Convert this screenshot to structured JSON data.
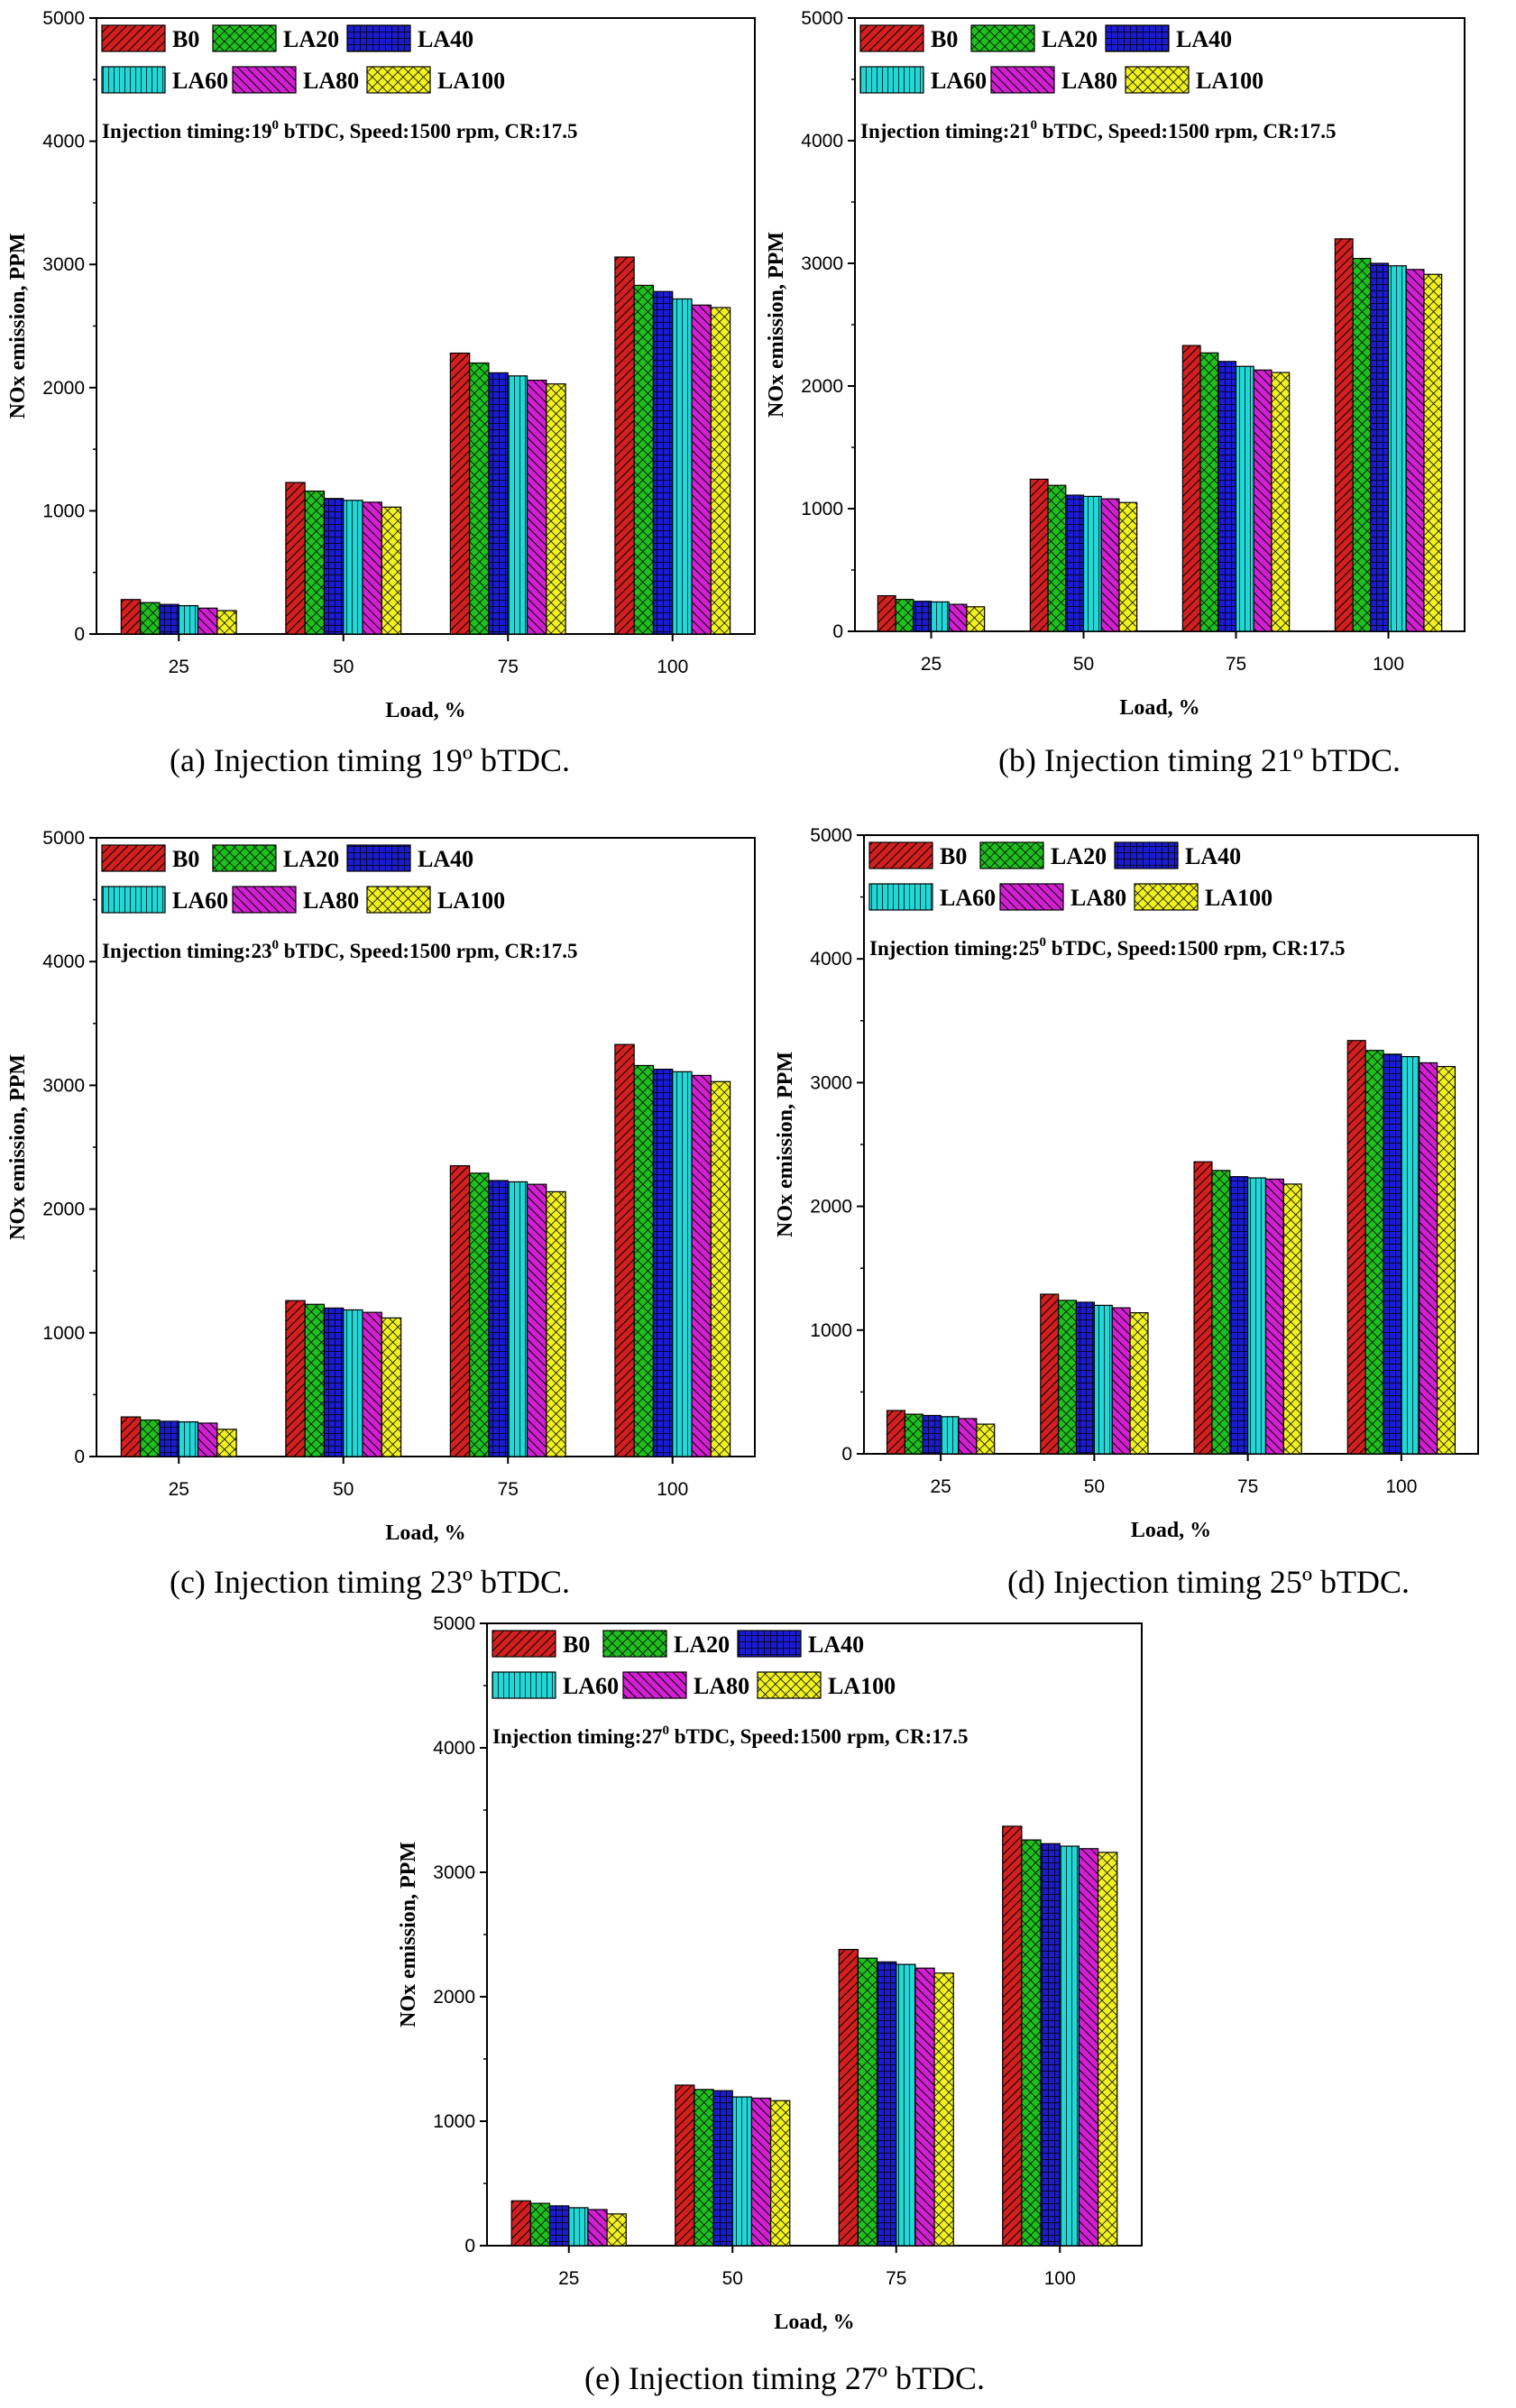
{
  "figure": {
    "captions": [
      "(a) Injection timing 19º bTDC.",
      "(b) Injection timing 21º bTDC.",
      "(c) Injection timing 23º bTDC.",
      "(d) Injection timing 25º bTDC.",
      "(e) Injection timing 27º bTDC."
    ]
  },
  "series_styles": [
    {
      "name": "B0",
      "color": "#d21f1f",
      "pattern": "diag-right"
    },
    {
      "name": "LA20",
      "color": "#1fbf1f",
      "pattern": "diamond-cross"
    },
    {
      "name": "LA40",
      "color": "#1b1bd2",
      "pattern": "grid"
    },
    {
      "name": "LA60",
      "color": "#1fd8d8",
      "pattern": "vertical"
    },
    {
      "name": "LA80",
      "color": "#d21fd2",
      "pattern": "diag-left"
    },
    {
      "name": "LA100",
      "color": "#f2f21f",
      "pattern": "diamond-cross"
    }
  ],
  "chart_data": [
    {
      "type": "bar",
      "panel": "a",
      "annotation": {
        "prefix": "Injection timing:19",
        "sup": "0",
        "suffix": " bTDC, Speed:1500 rpm, CR:17.5"
      },
      "xlabel": "Load, %",
      "ylabel": "NOx emission, PPM",
      "ylim": [
        0,
        5000
      ],
      "yticks": [
        0,
        1000,
        2000,
        3000,
        4000,
        5000
      ],
      "categories": [
        "25",
        "50",
        "75",
        "100"
      ],
      "series": [
        {
          "name": "B0",
          "values": [
            280,
            1230,
            2280,
            3060
          ]
        },
        {
          "name": "LA20",
          "values": [
            255,
            1160,
            2200,
            2830
          ]
        },
        {
          "name": "LA40",
          "values": [
            240,
            1100,
            2120,
            2780
          ]
        },
        {
          "name": "LA60",
          "values": [
            230,
            1085,
            2095,
            2720
          ]
        },
        {
          "name": "LA80",
          "values": [
            210,
            1070,
            2060,
            2670
          ]
        },
        {
          "name": "LA100",
          "values": [
            190,
            1030,
            2030,
            2650
          ]
        }
      ]
    },
    {
      "type": "bar",
      "panel": "b",
      "annotation": {
        "prefix": "Injection timing:21",
        "sup": "0",
        "suffix": " bTDC, Speed:1500 rpm, CR:17.5"
      },
      "xlabel": "Load, %",
      "ylabel": "NOx emission, PPM",
      "ylim": [
        0,
        5000
      ],
      "yticks": [
        0,
        1000,
        2000,
        3000,
        4000,
        5000
      ],
      "categories": [
        "25",
        "50",
        "75",
        "100"
      ],
      "series": [
        {
          "name": "B0",
          "values": [
            290,
            1240,
            2330,
            3200
          ]
        },
        {
          "name": "LA20",
          "values": [
            260,
            1190,
            2270,
            3040
          ]
        },
        {
          "name": "LA40",
          "values": [
            245,
            1110,
            2200,
            3000
          ]
        },
        {
          "name": "LA60",
          "values": [
            240,
            1100,
            2160,
            2980
          ]
        },
        {
          "name": "LA80",
          "values": [
            220,
            1080,
            2130,
            2950
          ]
        },
        {
          "name": "LA100",
          "values": [
            200,
            1050,
            2110,
            2910
          ]
        }
      ]
    },
    {
      "type": "bar",
      "panel": "c",
      "annotation": {
        "prefix": "Injection timing:23",
        "sup": "0",
        "suffix": " bTDC, Speed:1500 rpm, CR:17.5"
      },
      "xlabel": "Load, %",
      "ylabel": "NOx emission, PPM",
      "ylim": [
        0,
        5000
      ],
      "yticks": [
        0,
        1000,
        2000,
        3000,
        4000,
        5000
      ],
      "categories": [
        "25",
        "50",
        "75",
        "100"
      ],
      "series": [
        {
          "name": "B0",
          "values": [
            320,
            1260,
            2350,
            3330
          ]
        },
        {
          "name": "LA20",
          "values": [
            295,
            1230,
            2290,
            3160
          ]
        },
        {
          "name": "LA40",
          "values": [
            285,
            1200,
            2230,
            3130
          ]
        },
        {
          "name": "LA60",
          "values": [
            280,
            1185,
            2220,
            3110
          ]
        },
        {
          "name": "LA80",
          "values": [
            270,
            1165,
            2200,
            3080
          ]
        },
        {
          "name": "LA100",
          "values": [
            220,
            1120,
            2140,
            3030
          ]
        }
      ]
    },
    {
      "type": "bar",
      "panel": "d",
      "annotation": {
        "prefix": "Injection timing:25",
        "sup": "0",
        "suffix": " bTDC, Speed:1500 rpm, CR:17.5"
      },
      "xlabel": "Load, %",
      "ylabel": "NOx emission, PPM",
      "ylim": [
        0,
        5000
      ],
      "yticks": [
        0,
        1000,
        2000,
        3000,
        4000,
        5000
      ],
      "categories": [
        "25",
        "50",
        "75",
        "100"
      ],
      "series": [
        {
          "name": "B0",
          "values": [
            350,
            1290,
            2360,
            3340
          ]
        },
        {
          "name": "LA20",
          "values": [
            320,
            1240,
            2290,
            3260
          ]
        },
        {
          "name": "LA40",
          "values": [
            310,
            1225,
            2240,
            3230
          ]
        },
        {
          "name": "LA60",
          "values": [
            300,
            1200,
            2230,
            3210
          ]
        },
        {
          "name": "LA80",
          "values": [
            285,
            1180,
            2220,
            3160
          ]
        },
        {
          "name": "LA100",
          "values": [
            240,
            1140,
            2180,
            3130
          ]
        }
      ]
    },
    {
      "type": "bar",
      "panel": "e",
      "annotation": {
        "prefix": "Injection timing:27",
        "sup": "0",
        "suffix": " bTDC, Speed:1500 rpm, CR:17.5"
      },
      "xlabel": "Load, %",
      "ylabel": "NOx emission, PPM",
      "ylim": [
        0,
        5000
      ],
      "yticks": [
        0,
        1000,
        2000,
        3000,
        4000,
        5000
      ],
      "categories": [
        "25",
        "50",
        "75",
        "100"
      ],
      "series": [
        {
          "name": "B0",
          "values": [
            360,
            1290,
            2380,
            3370
          ]
        },
        {
          "name": "LA20",
          "values": [
            340,
            1255,
            2310,
            3260
          ]
        },
        {
          "name": "LA40",
          "values": [
            320,
            1245,
            2280,
            3230
          ]
        },
        {
          "name": "LA60",
          "values": [
            305,
            1195,
            2260,
            3210
          ]
        },
        {
          "name": "LA80",
          "values": [
            290,
            1185,
            2230,
            3190
          ]
        },
        {
          "name": "LA100",
          "values": [
            255,
            1165,
            2190,
            3160
          ]
        }
      ]
    }
  ]
}
